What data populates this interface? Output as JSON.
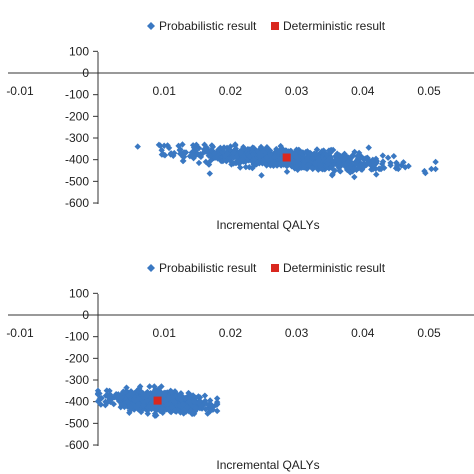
{
  "chart_data": [
    {
      "type": "scatter",
      "title": "",
      "xlabel": "Incremental QALYs",
      "ylabel": "",
      "xlim": [
        -0.01,
        0.055
      ],
      "ylim": [
        -600,
        100
      ],
      "x_ticks": [
        "-0.01",
        "0.01",
        "0.02",
        "0.03",
        "0.04",
        "0.05"
      ],
      "x_tick_values": [
        -0.01,
        0.01,
        0.02,
        0.03,
        0.04,
        0.05
      ],
      "y_ticks": [
        "100",
        "0",
        "-100",
        "-200",
        "-300",
        "-400",
        "-500",
        "-600"
      ],
      "y_tick_values": [
        100,
        0,
        -100,
        -200,
        -300,
        -400,
        -500,
        -600
      ],
      "legend": [
        "Probabilistic result",
        "Deterministic result"
      ],
      "legend_position": "top",
      "grid": false,
      "probabilistic_cloud": {
        "x_min": 0.006,
        "x_max": 0.051,
        "y_min": -480,
        "y_max": -330,
        "x_center": 0.0285,
        "y_center": -395,
        "slope_per_qaly": -2000,
        "x_spread_sd": 0.0075,
        "y_spread_sd": 22
      },
      "deterministic_result": {
        "x": 0.0285,
        "y": -390
      },
      "colors": {
        "probabilistic": "#3a78c2",
        "deterministic": "#d9281f"
      }
    },
    {
      "type": "scatter",
      "title": "",
      "xlabel": "Incremental QALYs",
      "ylabel": "",
      "xlim": [
        -0.01,
        0.055
      ],
      "ylim": [
        -600,
        100
      ],
      "x_ticks": [
        "-0.01",
        "0.01",
        "0.02",
        "0.03",
        "0.04",
        "0.05"
      ],
      "x_tick_values": [
        -0.01,
        0.01,
        0.02,
        0.03,
        0.04,
        0.05
      ],
      "y_ticks": [
        "100",
        "0",
        "-100",
        "-200",
        "-300",
        "-400",
        "-500",
        "-600"
      ],
      "y_tick_values": [
        100,
        0,
        -100,
        -200,
        -300,
        -400,
        -500,
        -600
      ],
      "legend": [
        "Probabilistic result",
        "Deterministic result"
      ],
      "legend_position": "top",
      "grid": false,
      "probabilistic_cloud": {
        "x_min": 0.0,
        "x_max": 0.018,
        "y_min": -465,
        "y_max": -330,
        "x_center": 0.009,
        "y_center": -398,
        "slope_per_qaly": -2000,
        "x_spread_sd": 0.0035,
        "y_spread_sd": 22
      },
      "deterministic_result": {
        "x": 0.009,
        "y": -395
      },
      "colors": {
        "probabilistic": "#3a78c2",
        "deterministic": "#d9281f"
      }
    }
  ]
}
